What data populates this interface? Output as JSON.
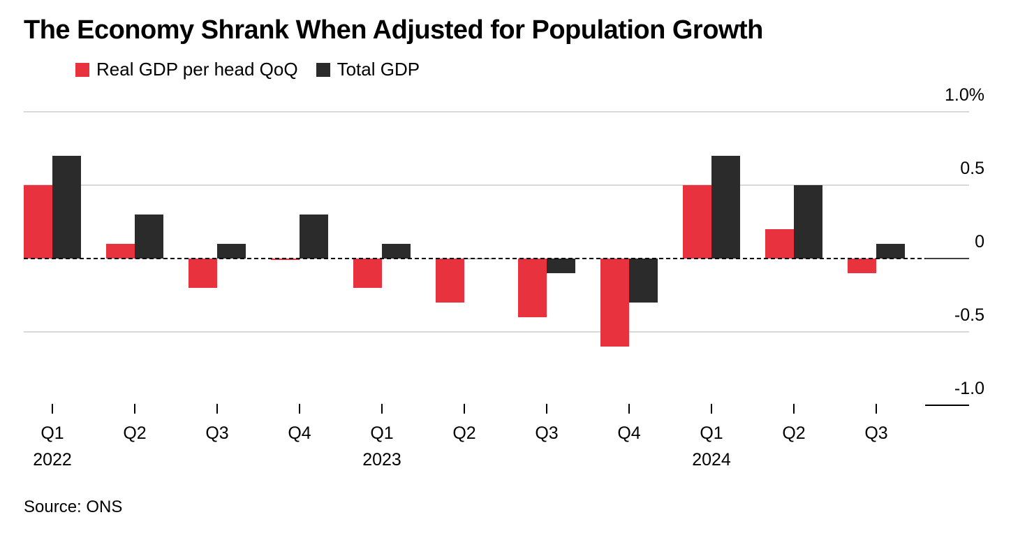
{
  "title": "The Economy Shrank When Adjusted for Population Growth",
  "source": "Source: ONS",
  "colors": {
    "per_head": "#e8333f",
    "total": "#2b2b2b",
    "grid": "#d9d9d9"
  },
  "chart_data": {
    "type": "bar",
    "title": "The Economy Shrank When Adjusted for Population Growth",
    "categories": [
      "Q1 2022",
      "Q2 2022",
      "Q3 2022",
      "Q4 2022",
      "Q1 2023",
      "Q2 2023",
      "Q3 2023",
      "Q4 2023",
      "Q1 2024",
      "Q2 2024",
      "Q3 2024"
    ],
    "quarter_labels": [
      "Q1",
      "Q2",
      "Q3",
      "Q4",
      "Q1",
      "Q2",
      "Q3",
      "Q4",
      "Q1",
      "Q2",
      "Q3"
    ],
    "year_labels": [
      {
        "index": 0,
        "label": "2022"
      },
      {
        "index": 4,
        "label": "2023"
      },
      {
        "index": 8,
        "label": "2024"
      }
    ],
    "series": [
      {
        "name": "Real GDP per head QoQ",
        "color": "#e8333f",
        "values": [
          0.5,
          0.1,
          -0.2,
          -0.01,
          -0.2,
          -0.3,
          -0.4,
          -0.6,
          0.5,
          0.2,
          -0.1
        ]
      },
      {
        "name": "Total GDP",
        "color": "#2b2b2b",
        "values": [
          0.7,
          0.3,
          0.1,
          0.3,
          0.1,
          0.0,
          -0.1,
          -0.3,
          0.7,
          0.5,
          0.1
        ]
      }
    ],
    "ylim": [
      -1.0,
      1.0
    ],
    "y_ticks": [
      {
        "value": 1.0,
        "label": "1.0%"
      },
      {
        "value": 0.5,
        "label": "0.5"
      },
      {
        "value": 0.0,
        "label": "0"
      },
      {
        "value": -0.5,
        "label": "-0.5"
      },
      {
        "value": -1.0,
        "label": "-1.0"
      }
    ],
    "y_axis_position": "right",
    "grid": true,
    "legend_position": "top-left",
    "xlabel": "",
    "ylabel": ""
  }
}
